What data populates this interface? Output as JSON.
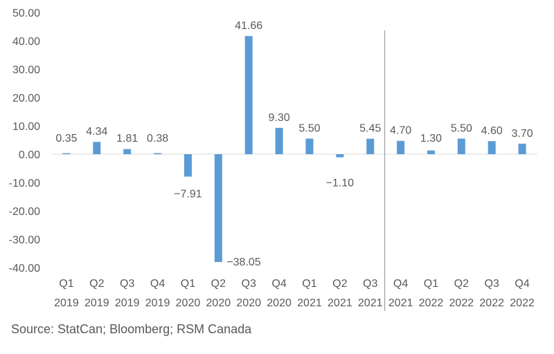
{
  "chart_data": {
    "type": "bar",
    "title": "",
    "xlabel": "",
    "ylabel": "",
    "ylim": [
      -40,
      50
    ],
    "yticks": [
      50,
      40,
      30,
      20,
      10,
      0,
      -10,
      -20,
      -30,
      -40
    ],
    "ytick_labels": [
      "50.00",
      "40.00",
      "30.00",
      "20.00",
      "10.00",
      "0.00",
      "-10.00",
      "-20.00",
      "-30.00",
      "-40.00"
    ],
    "categories": [
      {
        "quarter": "Q1",
        "year": "2019"
      },
      {
        "quarter": "Q2",
        "year": "2019"
      },
      {
        "quarter": "Q3",
        "year": "2019"
      },
      {
        "quarter": "Q4",
        "year": "2019"
      },
      {
        "quarter": "Q1",
        "year": "2020"
      },
      {
        "quarter": "Q2",
        "year": "2020"
      },
      {
        "quarter": "Q3",
        "year": "2020"
      },
      {
        "quarter": "Q4",
        "year": "2020"
      },
      {
        "quarter": "Q1",
        "year": "2021"
      },
      {
        "quarter": "Q2",
        "year": "2021"
      },
      {
        "quarter": "Q3",
        "year": "2021"
      },
      {
        "quarter": "Q4",
        "year": "2021"
      },
      {
        "quarter": "Q1",
        "year": "2022"
      },
      {
        "quarter": "Q2",
        "year": "2022"
      },
      {
        "quarter": "Q3",
        "year": "2022"
      },
      {
        "quarter": "Q4",
        "year": "2022"
      }
    ],
    "values": [
      0.35,
      4.34,
      1.81,
      0.38,
      -7.91,
      -38.05,
      41.66,
      9.3,
      5.5,
      -1.1,
      5.45,
      4.7,
      1.3,
      5.5,
      4.6,
      3.7
    ],
    "value_labels": [
      "0.35",
      "4.34",
      "1.81",
      "0.38",
      "−7.91",
      "−38.05",
      "41.66",
      "9.30",
      "5.50",
      "−1.10",
      "5.45",
      "4.70",
      "1.30",
      "5.50",
      "4.60",
      "3.70"
    ],
    "divider_between": [
      "Q3 2021",
      "Q4 2021"
    ],
    "grid": false,
    "legend": "none",
    "colors": {
      "bar": "#5B9BD5",
      "text": "#595959",
      "axis": "#d9d9d9",
      "divider": "#8c8c8c"
    }
  },
  "source": "Source: StatCan; Bloomberg; RSM Canada"
}
